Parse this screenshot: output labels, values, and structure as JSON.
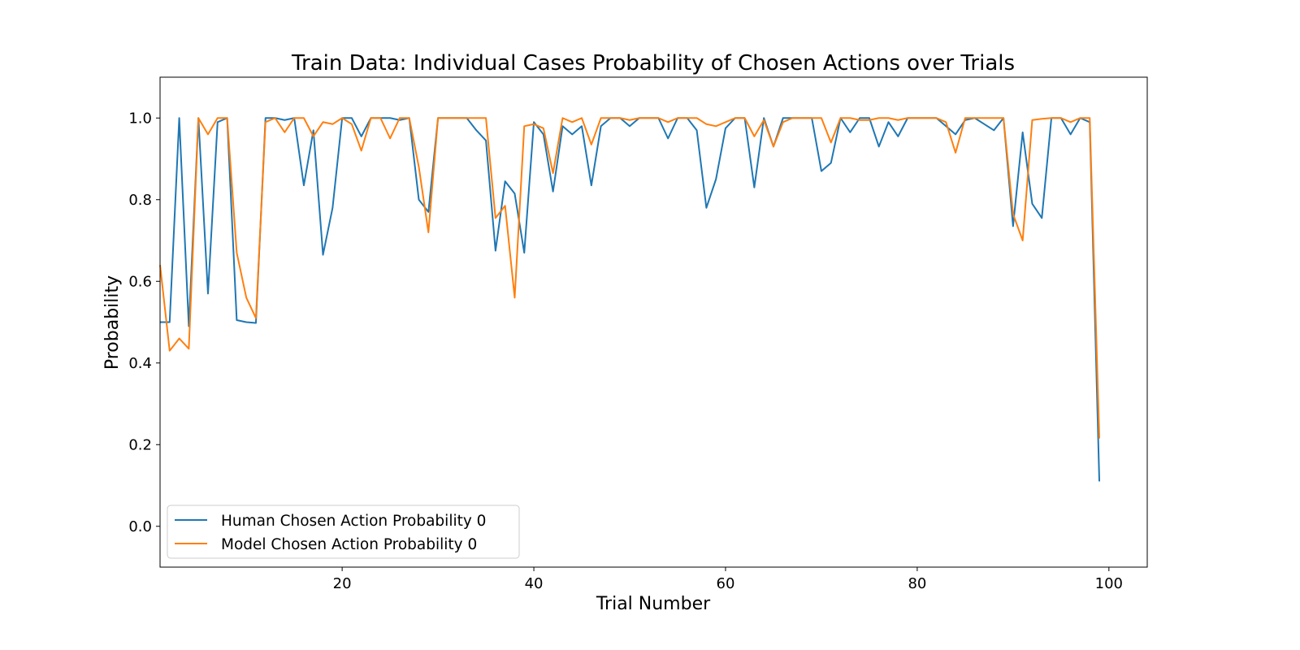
{
  "chart_data": {
    "type": "line",
    "title": "Train Data: Individual Cases Probability of Chosen Actions over Trials",
    "xlabel": "Trial Number",
    "ylabel": "Probability",
    "xlim": [
      1,
      104
    ],
    "ylim": [
      -0.1,
      1.1
    ],
    "xticks": [
      20,
      40,
      60,
      80,
      100
    ],
    "yticks": [
      0.0,
      0.2,
      0.4,
      0.6,
      0.8,
      1.0
    ],
    "grid": false,
    "legend_position": "lower-left",
    "x": [
      1,
      2,
      3,
      4,
      5,
      6,
      7,
      8,
      9,
      10,
      11,
      12,
      13,
      14,
      15,
      16,
      17,
      18,
      19,
      20,
      21,
      22,
      23,
      24,
      25,
      26,
      27,
      28,
      29,
      30,
      31,
      32,
      33,
      34,
      35,
      36,
      37,
      38,
      39,
      40,
      41,
      42,
      43,
      44,
      45,
      46,
      47,
      48,
      49,
      50,
      51,
      52,
      53,
      54,
      55,
      56,
      57,
      58,
      59,
      60,
      61,
      62,
      63,
      64,
      65,
      66,
      67,
      68,
      69,
      70,
      71,
      72,
      73,
      74,
      75,
      76,
      77,
      78,
      79,
      80,
      81,
      82,
      83,
      84,
      85,
      86,
      87,
      88,
      89,
      90,
      91,
      92,
      93,
      94,
      95,
      96,
      97,
      98,
      99
    ],
    "series": [
      {
        "name": "Human Chosen Action Probability 0",
        "color": "#1f77b4",
        "values": [
          0.5,
          0.5,
          1.0,
          0.49,
          1.0,
          0.57,
          0.99,
          1.0,
          0.505,
          0.5,
          0.498,
          1.0,
          1.0,
          0.995,
          1.0,
          0.835,
          0.97,
          0.665,
          0.78,
          1.0,
          1.0,
          0.955,
          1.0,
          1.0,
          1.0,
          0.995,
          1.0,
          0.8,
          0.77,
          1.0,
          1.0,
          1.0,
          1.0,
          0.97,
          0.945,
          0.675,
          0.845,
          0.815,
          0.67,
          0.99,
          0.96,
          0.82,
          0.98,
          0.96,
          0.98,
          0.835,
          0.98,
          1.0,
          1.0,
          0.98,
          1.0,
          1.0,
          1.0,
          0.95,
          1.0,
          1.0,
          0.97,
          0.78,
          0.85,
          0.975,
          1.0,
          1.0,
          0.83,
          1.0,
          0.93,
          1.0,
          1.0,
          1.0,
          1.0,
          0.87,
          0.89,
          1.0,
          0.965,
          1.0,
          1.0,
          0.93,
          0.99,
          0.955,
          1.0,
          1.0,
          1.0,
          1.0,
          0.98,
          0.96,
          0.995,
          1.0,
          0.985,
          0.97,
          1.0,
          0.735,
          0.965,
          0.79,
          0.755,
          1.0,
          1.0,
          0.96,
          1.0,
          0.99,
          0.11
        ]
      },
      {
        "name": "Model Chosen Action Probability 0",
        "color": "#ff7f0e",
        "values": [
          0.64,
          0.43,
          0.46,
          0.435,
          1.0,
          0.96,
          1.0,
          1.0,
          0.67,
          0.56,
          0.51,
          0.99,
          1.0,
          0.965,
          1.0,
          1.0,
          0.955,
          0.99,
          0.985,
          1.0,
          0.985,
          0.92,
          1.0,
          1.0,
          0.95,
          1.0,
          1.0,
          0.88,
          0.72,
          1.0,
          1.0,
          1.0,
          1.0,
          1.0,
          1.0,
          0.755,
          0.785,
          0.56,
          0.98,
          0.985,
          0.975,
          0.865,
          1.0,
          0.99,
          1.0,
          0.935,
          1.0,
          1.0,
          1.0,
          0.995,
          1.0,
          1.0,
          1.0,
          0.99,
          1.0,
          1.0,
          1.0,
          0.985,
          0.98,
          0.99,
          1.0,
          1.0,
          0.955,
          0.995,
          0.93,
          0.99,
          1.0,
          1.0,
          1.0,
          1.0,
          0.94,
          1.0,
          1.0,
          0.995,
          0.995,
          1.0,
          1.0,
          0.995,
          1.0,
          1.0,
          1.0,
          1.0,
          0.99,
          0.915,
          1.0,
          1.0,
          1.0,
          1.0,
          1.0,
          0.765,
          0.7,
          0.995,
          0.998,
          1.0,
          1.0,
          0.99,
          1.0,
          1.0,
          0.215
        ]
      }
    ]
  }
}
